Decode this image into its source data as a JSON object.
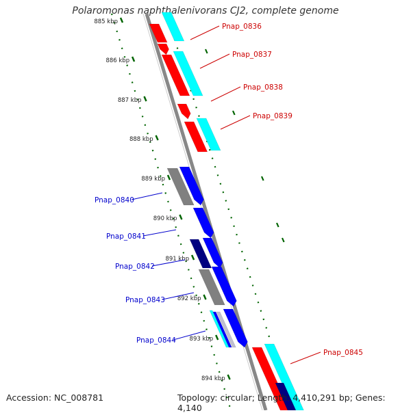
{
  "title": "Polaromonas naphthalenivorans CJ2, complete genome",
  "footer": {
    "accession": "Accession: NC_008781",
    "topology": "Topology: circular; Length: 4,410,291 bp; Genes: 4,140"
  },
  "scale_labels": [
    "885 kbp",
    "886 kbp",
    "887 kbp",
    "888 kbp",
    "889 kbp",
    "890 kbp",
    "891 kbp",
    "892 kbp",
    "893 kbp",
    "894 kbp"
  ],
  "genes": [
    {
      "label": "Pnap_0836",
      "strand": "forward"
    },
    {
      "label": "Pnap_0837",
      "strand": "forward"
    },
    {
      "label": "Pnap_0838",
      "strand": "forward"
    },
    {
      "label": "Pnap_0839",
      "strand": "forward"
    },
    {
      "label": "Pnap_0840",
      "strand": "reverse"
    },
    {
      "label": "Pnap_0841",
      "strand": "reverse"
    },
    {
      "label": "Pnap_0842",
      "strand": "reverse"
    },
    {
      "label": "Pnap_0843",
      "strand": "reverse"
    },
    {
      "label": "Pnap_0844",
      "strand": "reverse"
    },
    {
      "label": "Pnap_0845",
      "strand": "forward"
    }
  ],
  "colors": {
    "forward_cds": "#ff0000",
    "reverse_cds": "#0000ff",
    "forward_feature": "#00ffff",
    "reverse_feature_dark": "#000080",
    "other_feature": "#808080",
    "backbone": "#888888",
    "gc_ticks": "#006400",
    "forward_label": "#cc0000",
    "reverse_label": "#0000cc"
  }
}
